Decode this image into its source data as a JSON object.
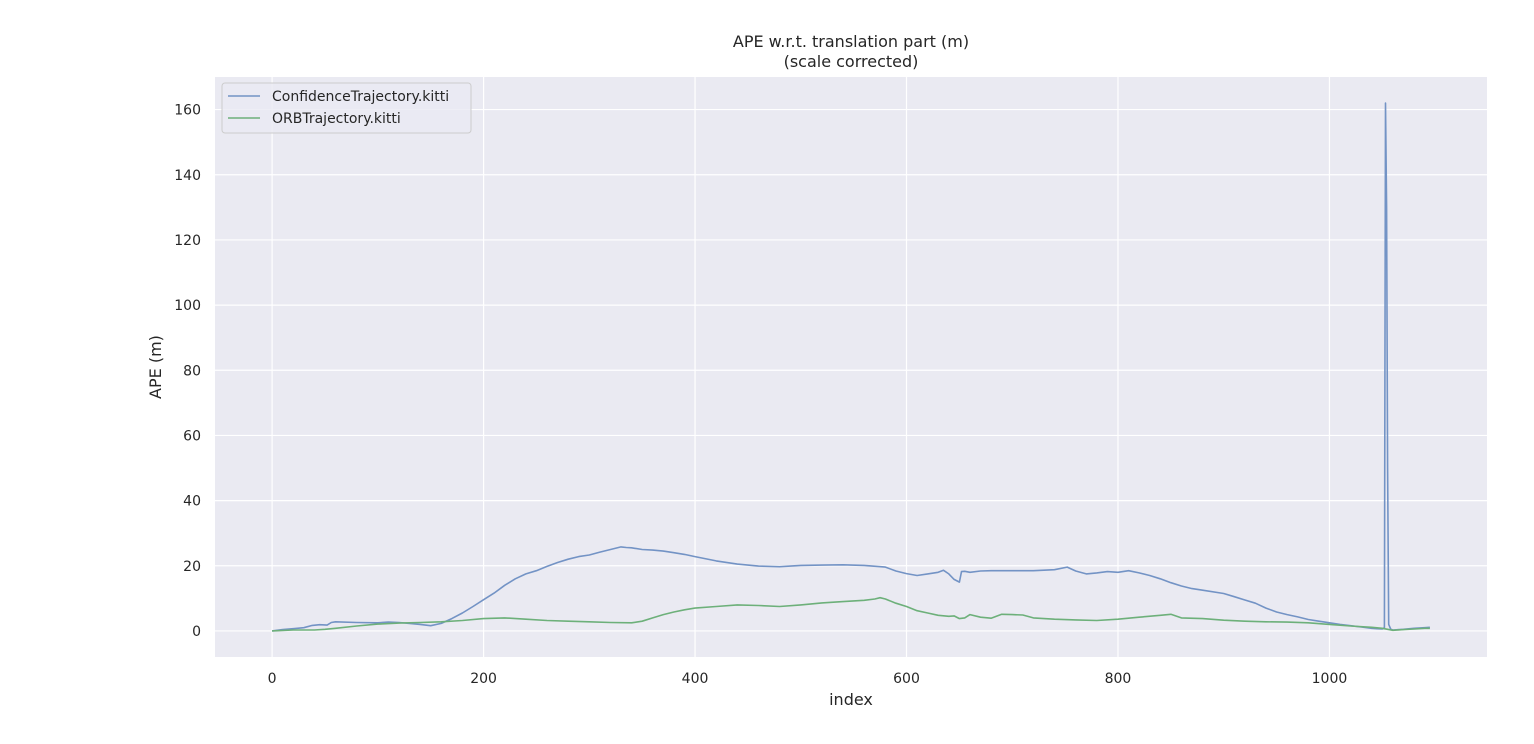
{
  "chart_data": {
    "type": "line",
    "title": "APE w.r.t. translation part (m)",
    "subtitle": "(scale corrected)",
    "xlabel": "index",
    "ylabel": "APE (m)",
    "xlim": [
      -54,
      1149
    ],
    "ylim": [
      -8,
      170
    ],
    "xticks": [
      0,
      200,
      400,
      600,
      800,
      1000
    ],
    "yticks": [
      0,
      20,
      40,
      60,
      80,
      100,
      120,
      140,
      160
    ],
    "grid": true,
    "legend_position": "upper-left",
    "series": [
      {
        "name": "ConfidenceTrajectory.kitti",
        "color": "#7393c5",
        "x": [
          0,
          10,
          20,
          30,
          38,
          45,
          52,
          56,
          60,
          80,
          100,
          110,
          120,
          130,
          140,
          150,
          160,
          170,
          180,
          190,
          200,
          210,
          220,
          230,
          240,
          250,
          260,
          270,
          280,
          290,
          300,
          310,
          320,
          330,
          335,
          340,
          350,
          360,
          370,
          380,
          390,
          400,
          420,
          440,
          460,
          480,
          500,
          520,
          540,
          560,
          580,
          590,
          600,
          610,
          620,
          630,
          635,
          640,
          645,
          650,
          652,
          655,
          660,
          670,
          680,
          700,
          720,
          740,
          752,
          760,
          770,
          780,
          790,
          800,
          810,
          820,
          830,
          840,
          850,
          860,
          870,
          880,
          900,
          910,
          920,
          930,
          940,
          950,
          960,
          970,
          980,
          990,
          1000,
          1010,
          1020,
          1030,
          1040,
          1045,
          1050,
          1052,
          1053,
          1054,
          1055,
          1056,
          1058,
          1060,
          1070,
          1080,
          1090,
          1095
        ],
        "values": [
          0,
          0.4,
          0.7,
          1.0,
          1.7,
          1.9,
          1.8,
          2.6,
          2.8,
          2.6,
          2.5,
          2.7,
          2.6,
          2.3,
          2.0,
          1.6,
          2.3,
          3.8,
          5.5,
          7.5,
          9.6,
          11.6,
          14.0,
          16.0,
          17.5,
          18.5,
          19.8,
          21.0,
          22.0,
          22.8,
          23.3,
          24.2,
          25.0,
          25.8,
          25.6,
          25.5,
          25.0,
          24.8,
          24.5,
          24.0,
          23.5,
          22.8,
          21.5,
          20.5,
          19.9,
          19.7,
          20.1,
          20.2,
          20.3,
          20.1,
          19.6,
          18.4,
          17.6,
          17.0,
          17.5,
          18.0,
          18.6,
          17.5,
          15.8,
          15.0,
          18.2,
          18.3,
          18.0,
          18.4,
          18.5,
          18.5,
          18.5,
          18.8,
          19.6,
          18.4,
          17.5,
          17.8,
          18.2,
          18.0,
          18.5,
          17.8,
          17.0,
          16.0,
          14.8,
          13.8,
          13.0,
          12.5,
          11.5,
          10.5,
          9.5,
          8.5,
          7.0,
          5.8,
          5.0,
          4.3,
          3.5,
          3.0,
          2.5,
          2.0,
          1.6,
          1.2,
          0.8,
          0.7,
          0.6,
          1.0,
          162,
          130,
          50,
          2.0,
          0.5,
          0.3,
          0.5,
          0.8,
          1.0,
          1.1
        ]
      },
      {
        "name": "ORBTrajectory.kitti",
        "color": "#6db07a",
        "x": [
          0,
          20,
          40,
          50,
          60,
          80,
          100,
          120,
          140,
          160,
          180,
          200,
          220,
          240,
          260,
          280,
          300,
          320,
          340,
          350,
          360,
          370,
          380,
          390,
          400,
          420,
          440,
          460,
          480,
          500,
          520,
          540,
          560,
          570,
          575,
          580,
          590,
          600,
          610,
          620,
          630,
          640,
          645,
          650,
          655,
          660,
          670,
          680,
          690,
          700,
          710,
          720,
          740,
          760,
          780,
          800,
          820,
          840,
          850,
          860,
          880,
          900,
          920,
          940,
          960,
          980,
          1000,
          1020,
          1040,
          1050,
          1060,
          1070,
          1080,
          1090,
          1095
        ],
        "values": [
          0,
          0.3,
          0.3,
          0.5,
          0.8,
          1.5,
          2.1,
          2.4,
          2.6,
          2.8,
          3.2,
          3.8,
          4.0,
          3.6,
          3.2,
          3.0,
          2.8,
          2.6,
          2.5,
          3.0,
          4.0,
          5.0,
          5.8,
          6.5,
          7.0,
          7.5,
          8.0,
          7.8,
          7.5,
          8.0,
          8.6,
          9.0,
          9.4,
          9.8,
          10.2,
          9.8,
          8.5,
          7.5,
          6.2,
          5.5,
          4.8,
          4.5,
          4.6,
          3.8,
          4.0,
          5.0,
          4.2,
          3.9,
          5.1,
          5.0,
          4.9,
          4.0,
          3.6,
          3.4,
          3.2,
          3.6,
          4.2,
          4.8,
          5.1,
          4.0,
          3.8,
          3.3,
          3.0,
          2.8,
          2.7,
          2.5,
          2.0,
          1.5,
          1.1,
          0.8,
          0.2,
          0.4,
          0.6,
          0.8,
          0.8
        ]
      }
    ]
  }
}
